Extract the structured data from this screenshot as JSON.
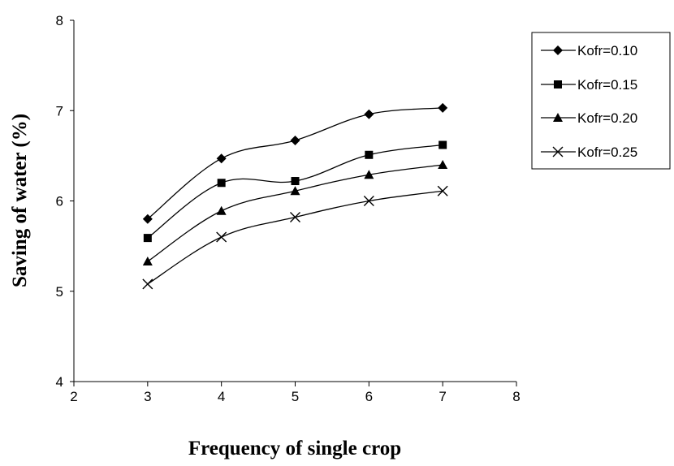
{
  "chart_data": {
    "type": "line",
    "xlabel": "Frequency of single crop",
    "ylabel": "Saving of water (%)",
    "xlim": [
      2,
      8
    ],
    "ylim": [
      4,
      8
    ],
    "xticks": [
      "2",
      "3",
      "4",
      "5",
      "6",
      "7",
      "8"
    ],
    "yticks": [
      "4",
      "5",
      "6",
      "7",
      "8"
    ],
    "grid": false,
    "legend": "right",
    "x": [
      3,
      4,
      5,
      6,
      7
    ],
    "series": [
      {
        "name": "Kofr=0.10",
        "marker": "diamond",
        "values": [
          5.8,
          6.47,
          6.67,
          6.96,
          7.03
        ]
      },
      {
        "name": "Kofr=0.15",
        "marker": "square",
        "values": [
          5.59,
          6.2,
          6.22,
          6.51,
          6.62
        ]
      },
      {
        "name": "Kofr=0.20",
        "marker": "triangle",
        "values": [
          5.33,
          5.89,
          6.11,
          6.29,
          6.4
        ]
      },
      {
        "name": "Kofr=0.25",
        "marker": "x",
        "values": [
          5.08,
          5.6,
          5.82,
          6.0,
          6.11
        ]
      }
    ]
  }
}
